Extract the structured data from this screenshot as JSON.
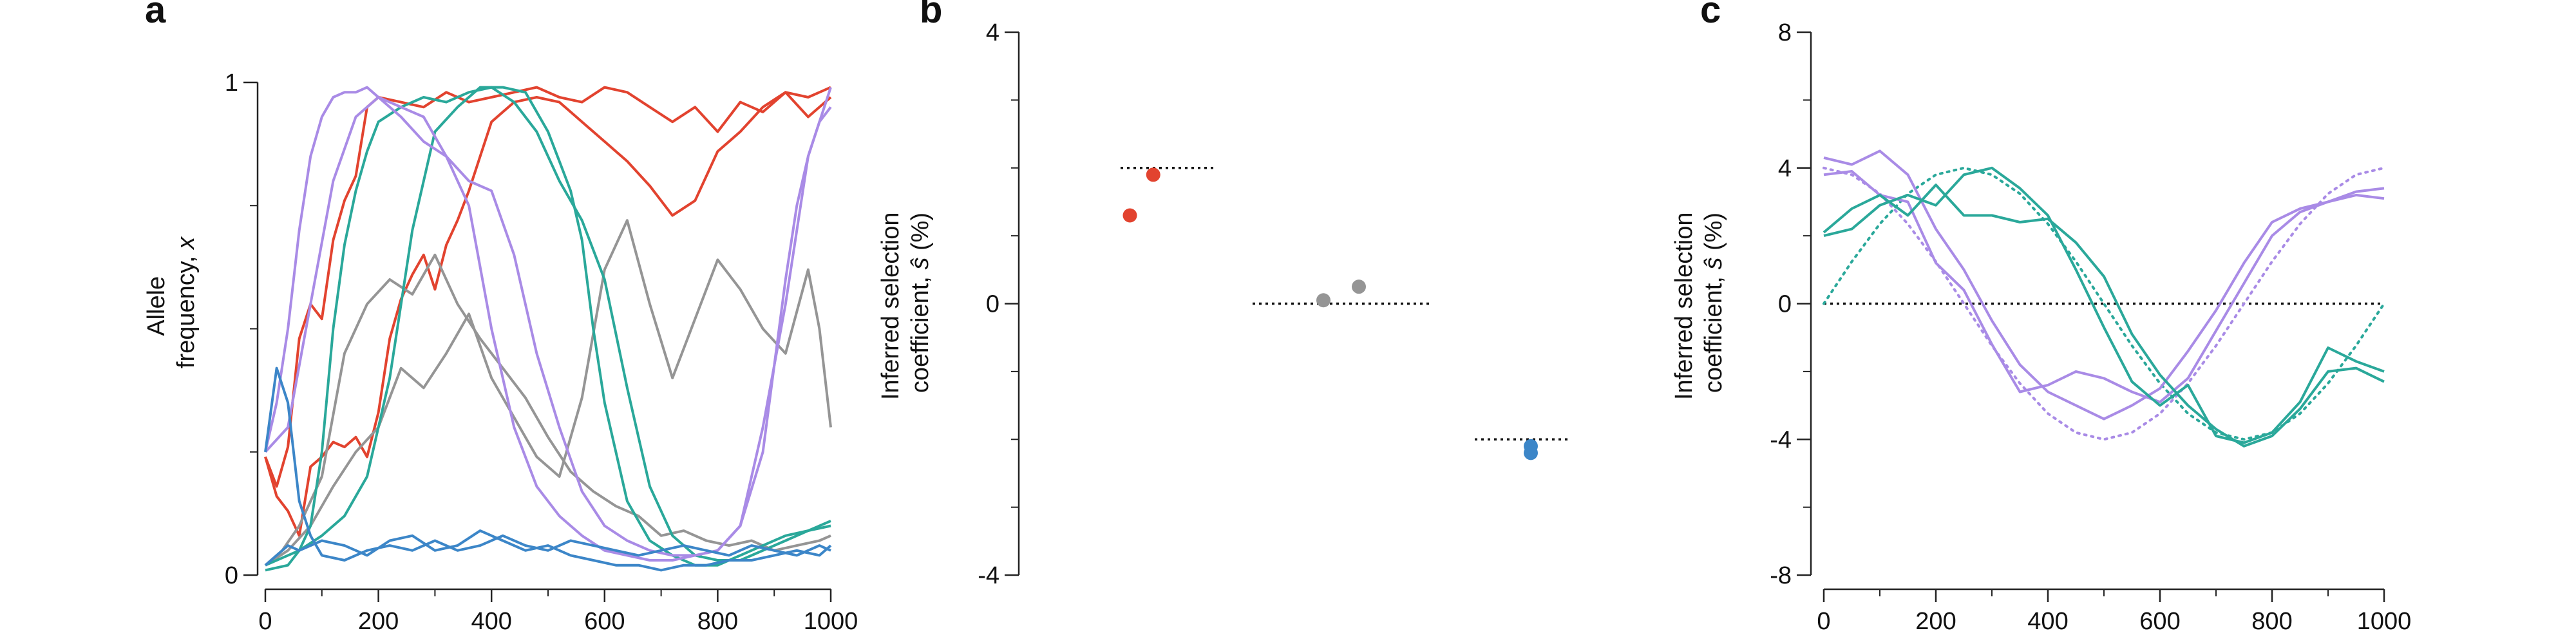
{
  "panels": {
    "a": {
      "letter": "a"
    },
    "b": {
      "letter": "b"
    },
    "c": {
      "letter": "c"
    }
  },
  "colors": {
    "red": "#e2432f",
    "gray": "#959595",
    "teal": "#2aa89a",
    "purple": "#a98be6",
    "blue": "#3c86c8",
    "axis": "#222222",
    "reference": "#111111"
  },
  "chart_data": [
    {
      "panel": "a",
      "type": "line",
      "title": "",
      "ylabel_lines": [
        "Allele",
        "frequency, "
      ],
      "ylabel_var": "x",
      "xlim": [
        0,
        1000
      ],
      "ylim": [
        0,
        1
      ],
      "xticks": [
        "0",
        "200",
        "400",
        "600",
        "800",
        "1000"
      ],
      "yticks": [
        "0",
        "1"
      ],
      "y_minor_ticks": [
        0.25,
        0.5,
        0.75
      ],
      "series": [
        {
          "color": "red",
          "x": [
            0,
            20,
            40,
            60,
            80,
            100,
            120,
            140,
            160,
            180,
            200,
            240,
            280,
            320,
            360,
            400,
            440,
            480,
            520,
            560,
            600,
            640,
            680,
            720,
            760,
            800,
            840,
            880,
            920,
            960,
            1000
          ],
          "y": [
            0.24,
            0.18,
            0.26,
            0.48,
            0.55,
            0.52,
            0.68,
            0.76,
            0.81,
            0.95,
            0.97,
            0.96,
            0.95,
            0.98,
            0.96,
            0.97,
            0.98,
            0.99,
            0.97,
            0.96,
            0.99,
            0.98,
            0.95,
            0.92,
            0.95,
            0.9,
            0.96,
            0.94,
            0.98,
            0.93,
            0.97
          ]
        },
        {
          "color": "red",
          "x": [
            0,
            20,
            40,
            60,
            80,
            100,
            120,
            140,
            160,
            180,
            200,
            220,
            240,
            260,
            280,
            300,
            320,
            340,
            360,
            380,
            400,
            440,
            480,
            520,
            560,
            600,
            640,
            680,
            720,
            760,
            800,
            840,
            880,
            920,
            960,
            1000
          ],
          "y": [
            0.24,
            0.16,
            0.13,
            0.08,
            0.22,
            0.24,
            0.27,
            0.26,
            0.28,
            0.24,
            0.33,
            0.48,
            0.56,
            0.61,
            0.65,
            0.58,
            0.67,
            0.72,
            0.78,
            0.85,
            0.92,
            0.96,
            0.97,
            0.96,
            0.92,
            0.88,
            0.84,
            0.79,
            0.73,
            0.76,
            0.86,
            0.9,
            0.95,
            0.98,
            0.97,
            0.99
          ]
        },
        {
          "color": "gray",
          "x": [
            0,
            30,
            60,
            100,
            140,
            180,
            220,
            260,
            300,
            340,
            380,
            420,
            460,
            500,
            540,
            580,
            620,
            660,
            700,
            740,
            780,
            820,
            860,
            900,
            940,
            980,
            1000
          ],
          "y": [
            0.02,
            0.05,
            0.1,
            0.2,
            0.45,
            0.55,
            0.6,
            0.57,
            0.65,
            0.55,
            0.48,
            0.42,
            0.36,
            0.28,
            0.21,
            0.17,
            0.14,
            0.12,
            0.08,
            0.09,
            0.07,
            0.06,
            0.07,
            0.05,
            0.06,
            0.07,
            0.08
          ]
        },
        {
          "color": "gray",
          "x": [
            0,
            40,
            80,
            120,
            160,
            200,
            240,
            280,
            320,
            360,
            400,
            440,
            480,
            520,
            560,
            600,
            640,
            680,
            720,
            760,
            800,
            840,
            880,
            920,
            960,
            980,
            1000
          ],
          "y": [
            0.02,
            0.05,
            0.1,
            0.18,
            0.25,
            0.3,
            0.42,
            0.38,
            0.45,
            0.53,
            0.4,
            0.32,
            0.24,
            0.2,
            0.36,
            0.62,
            0.72,
            0.55,
            0.4,
            0.52,
            0.64,
            0.58,
            0.5,
            0.45,
            0.62,
            0.5,
            0.3
          ]
        },
        {
          "color": "teal",
          "x": [
            0,
            40,
            60,
            80,
            100,
            120,
            140,
            160,
            180,
            200,
            240,
            280,
            320,
            360,
            400,
            440,
            480,
            520,
            560,
            600,
            640,
            680,
            720,
            760,
            800,
            840,
            880,
            920,
            960,
            1000
          ],
          "y": [
            0.01,
            0.02,
            0.05,
            0.1,
            0.25,
            0.5,
            0.67,
            0.78,
            0.86,
            0.92,
            0.95,
            0.97,
            0.96,
            0.98,
            0.99,
            0.96,
            0.9,
            0.8,
            0.72,
            0.6,
            0.38,
            0.18,
            0.08,
            0.04,
            0.03,
            0.03,
            0.05,
            0.07,
            0.09,
            0.11
          ]
        },
        {
          "color": "teal",
          "x": [
            0,
            60,
            100,
            140,
            180,
            220,
            260,
            300,
            340,
            380,
            420,
            460,
            500,
            520,
            540,
            560,
            580,
            600,
            640,
            680,
            720,
            760,
            800,
            840,
            880,
            920,
            960,
            1000
          ],
          "y": [
            0.02,
            0.05,
            0.08,
            0.12,
            0.2,
            0.4,
            0.7,
            0.9,
            0.95,
            0.99,
            0.99,
            0.98,
            0.9,
            0.84,
            0.78,
            0.68,
            0.5,
            0.35,
            0.15,
            0.07,
            0.04,
            0.02,
            0.02,
            0.04,
            0.06,
            0.08,
            0.09,
            0.1
          ]
        },
        {
          "color": "purple",
          "x": [
            0,
            20,
            40,
            60,
            80,
            100,
            120,
            140,
            160,
            180,
            200,
            240,
            280,
            320,
            360,
            400,
            440,
            480,
            520,
            560,
            600,
            640,
            680,
            720,
            760,
            800,
            840,
            880,
            920,
            960,
            1000
          ],
          "y": [
            0.25,
            0.35,
            0.5,
            0.7,
            0.85,
            0.93,
            0.97,
            0.98,
            0.98,
            0.99,
            0.97,
            0.93,
            0.88,
            0.85,
            0.8,
            0.78,
            0.65,
            0.45,
            0.3,
            0.17,
            0.1,
            0.07,
            0.05,
            0.04,
            0.04,
            0.05,
            0.1,
            0.3,
            0.55,
            0.85,
            0.99
          ]
        },
        {
          "color": "purple",
          "x": [
            0,
            40,
            80,
            120,
            160,
            200,
            240,
            280,
            320,
            360,
            400,
            440,
            480,
            520,
            560,
            600,
            640,
            680,
            720,
            760,
            800,
            840,
            880,
            920,
            940,
            960,
            980,
            1000
          ],
          "y": [
            0.25,
            0.3,
            0.55,
            0.8,
            0.93,
            0.97,
            0.95,
            0.93,
            0.85,
            0.75,
            0.5,
            0.3,
            0.18,
            0.12,
            0.08,
            0.05,
            0.04,
            0.03,
            0.03,
            0.04,
            0.05,
            0.1,
            0.25,
            0.6,
            0.75,
            0.85,
            0.92,
            0.95
          ]
        },
        {
          "color": "blue",
          "x": [
            0,
            20,
            40,
            60,
            80,
            100,
            140,
            180,
            220,
            260,
            300,
            340,
            380,
            420,
            460,
            500,
            540,
            580,
            620,
            660,
            700,
            740,
            780,
            820,
            860,
            900,
            940,
            980,
            1000
          ],
          "y": [
            0.25,
            0.42,
            0.35,
            0.15,
            0.08,
            0.04,
            0.03,
            0.05,
            0.06,
            0.05,
            0.07,
            0.05,
            0.06,
            0.08,
            0.06,
            0.05,
            0.07,
            0.06,
            0.05,
            0.04,
            0.05,
            0.06,
            0.05,
            0.04,
            0.06,
            0.05,
            0.04,
            0.06,
            0.05
          ]
        },
        {
          "color": "blue",
          "x": [
            0,
            20,
            40,
            60,
            100,
            140,
            180,
            220,
            260,
            300,
            340,
            380,
            420,
            460,
            500,
            540,
            580,
            620,
            660,
            700,
            740,
            780,
            820,
            860,
            900,
            940,
            980,
            1000
          ],
          "y": [
            0.02,
            0.04,
            0.06,
            0.05,
            0.07,
            0.06,
            0.04,
            0.07,
            0.08,
            0.05,
            0.06,
            0.09,
            0.07,
            0.05,
            0.06,
            0.04,
            0.03,
            0.02,
            0.02,
            0.01,
            0.02,
            0.02,
            0.03,
            0.03,
            0.04,
            0.05,
            0.04,
            0.06
          ]
        }
      ]
    },
    {
      "panel": "b",
      "type": "scatter",
      "title": "",
      "ylabel_lines": [
        "Inferred selection",
        "coefficient, "
      ],
      "ylabel_var": "ŝ",
      "ylabel_unit": " (%)",
      "ylim": [
        -4,
        4
      ],
      "yticks": [
        "4",
        "0",
        "-4"
      ],
      "y_minor_ticks": [
        -3,
        -2,
        -1,
        1,
        2,
        3
      ],
      "groups": [
        {
          "color": "red",
          "true_value": 2,
          "inferred": [
            1.9,
            1.3
          ],
          "offsets": [
            0.35,
            0.1
          ]
        },
        {
          "color": "gray",
          "true_value": 0,
          "inferred": [
            0.05,
            0.25
          ],
          "offsets": [
            0.4,
            0.6
          ]
        },
        {
          "color": "blue",
          "true_value": -2,
          "inferred": [
            -2.1,
            -2.2
          ],
          "offsets": [
            0.6,
            0.6
          ]
        }
      ]
    },
    {
      "panel": "c",
      "type": "line",
      "title": "",
      "ylabel_lines": [
        "Inferred selection",
        "coefficient, "
      ],
      "ylabel_var": "ŝ",
      "ylabel_unit": " (%)",
      "xlim": [
        0,
        1000
      ],
      "ylim": [
        -8,
        8
      ],
      "xticks": [
        "0",
        "200",
        "400",
        "600",
        "800",
        "1000"
      ],
      "yticks": [
        "8",
        "4",
        "0",
        "-4",
        "-8"
      ],
      "y_minor_ticks": [
        -6,
        -2,
        2,
        6
      ],
      "true_curves": [
        {
          "color": "purple",
          "x": [
            0,
            50,
            100,
            150,
            200,
            250,
            300,
            350,
            400,
            450,
            500,
            550,
            600,
            650,
            700,
            750,
            800,
            850,
            900,
            950,
            1000
          ],
          "y": [
            4,
            3.8,
            3.24,
            2.35,
            1.24,
            0,
            -1.24,
            -2.35,
            -3.24,
            -3.8,
            -4,
            -3.8,
            -3.24,
            -2.35,
            -1.24,
            0,
            1.24,
            2.35,
            3.24,
            3.8,
            4
          ]
        },
        {
          "color": "teal",
          "x": [
            0,
            50,
            100,
            150,
            200,
            250,
            300,
            350,
            400,
            450,
            500,
            550,
            600,
            650,
            700,
            750,
            800,
            850,
            900,
            950,
            1000
          ],
          "y": [
            0,
            1.24,
            2.35,
            3.24,
            3.8,
            4,
            3.8,
            3.24,
            2.35,
            1.24,
            0,
            -1.24,
            -2.35,
            -3.24,
            -3.8,
            -4,
            -3.8,
            -3.24,
            -2.35,
            -1.24,
            0
          ]
        }
      ],
      "series": [
        {
          "color": "purple",
          "x": [
            0,
            50,
            100,
            150,
            200,
            250,
            300,
            350,
            400,
            450,
            500,
            550,
            600,
            650,
            700,
            750,
            800,
            850,
            900,
            950,
            1000
          ],
          "y": [
            4.3,
            4.1,
            4.5,
            3.8,
            2.2,
            1.0,
            -0.5,
            -1.8,
            -2.6,
            -3.0,
            -3.4,
            -3.0,
            -2.5,
            -1.4,
            -0.2,
            1.2,
            2.4,
            2.8,
            3.0,
            3.2,
            3.1
          ]
        },
        {
          "color": "purple",
          "x": [
            0,
            50,
            100,
            150,
            200,
            250,
            300,
            350,
            400,
            450,
            500,
            550,
            600,
            650,
            700,
            750,
            800,
            850,
            900,
            950,
            1000
          ],
          "y": [
            3.8,
            3.9,
            3.2,
            3.0,
            1.2,
            0.4,
            -1.2,
            -2.6,
            -2.4,
            -2.0,
            -2.2,
            -2.6,
            -2.9,
            -2.2,
            -0.8,
            0.6,
            2.0,
            2.7,
            3.0,
            3.3,
            3.4
          ]
        },
        {
          "color": "teal",
          "x": [
            0,
            50,
            100,
            150,
            200,
            250,
            300,
            350,
            400,
            450,
            500,
            550,
            600,
            650,
            700,
            750,
            800,
            850,
            900,
            950,
            1000
          ],
          "y": [
            2.0,
            2.2,
            2.9,
            3.2,
            2.9,
            3.8,
            4.0,
            3.4,
            2.6,
            1.0,
            -0.7,
            -2.3,
            -3.0,
            -2.4,
            -3.9,
            -4.1,
            -3.8,
            -2.9,
            -1.3,
            -1.7,
            -2.0
          ]
        },
        {
          "color": "teal",
          "x": [
            0,
            50,
            100,
            150,
            200,
            250,
            300,
            350,
            400,
            450,
            500,
            550,
            600,
            650,
            700,
            750,
            800,
            850,
            900,
            950,
            1000
          ],
          "y": [
            2.1,
            2.8,
            3.2,
            2.6,
            3.5,
            2.6,
            2.6,
            2.4,
            2.5,
            1.8,
            0.8,
            -0.9,
            -2.1,
            -3.0,
            -3.7,
            -4.2,
            -3.9,
            -3.1,
            -2.0,
            -1.9,
            -2.3
          ]
        }
      ]
    }
  ]
}
